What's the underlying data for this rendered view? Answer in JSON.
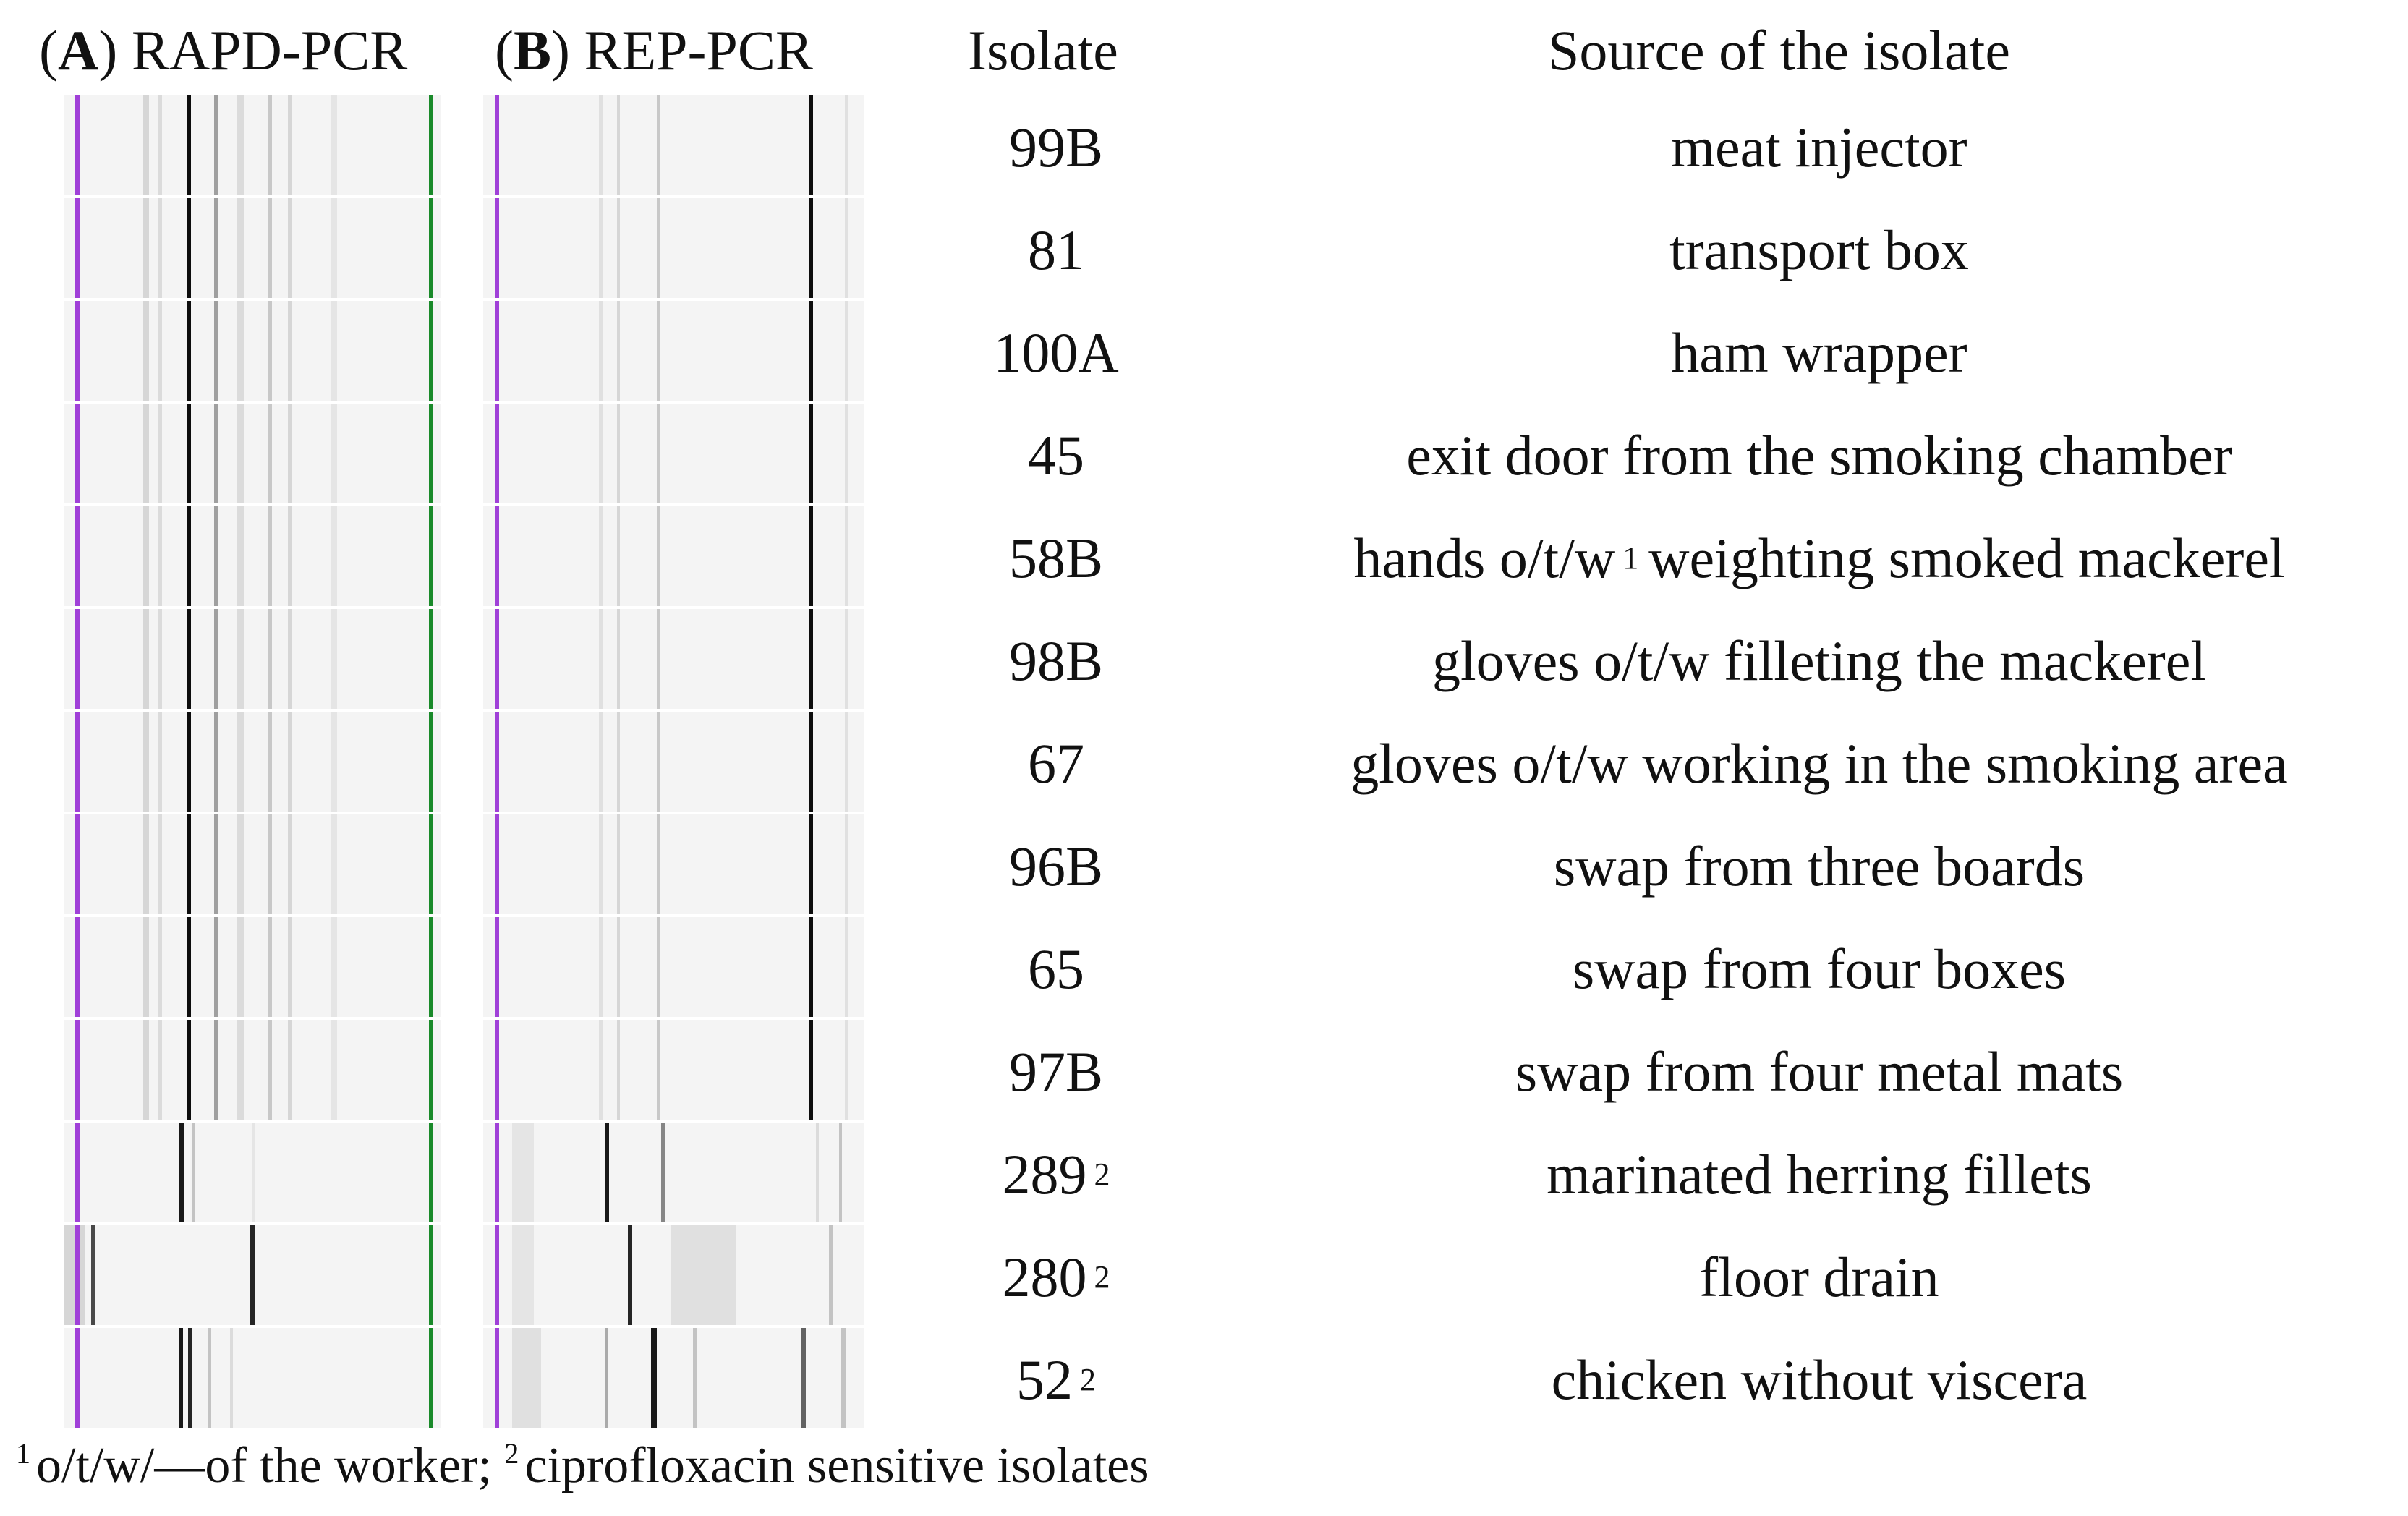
{
  "headers": {
    "panel_a_letter": "A",
    "panel_a_title": "RAPD-PCR",
    "panel_b_letter": "B",
    "panel_b_title": "REP-PCR",
    "isolate": "Isolate",
    "source": "Source of the isolate"
  },
  "rows": [
    {
      "isolate": "99B",
      "sup": "",
      "source": "meat injector"
    },
    {
      "isolate": "81",
      "sup": "",
      "source": "transport box"
    },
    {
      "isolate": "100A",
      "sup": "",
      "source": "ham wrapper"
    },
    {
      "isolate": "45",
      "sup": "",
      "source": "exit door from the smoking chamber"
    },
    {
      "isolate": "58B",
      "sup": "",
      "source": "hands o/t/w",
      "source_sup": "1",
      "source_tail": "weighting smoked mackerel"
    },
    {
      "isolate": "98B",
      "sup": "",
      "source": "gloves o/t/w filleting the mackerel"
    },
    {
      "isolate": "67",
      "sup": "",
      "source": "gloves o/t/w working in the smoking area"
    },
    {
      "isolate": "96B",
      "sup": "",
      "source": "swap from three boards"
    },
    {
      "isolate": "65",
      "sup": "",
      "source": "swap from four boxes"
    },
    {
      "isolate": "97B",
      "sup": "",
      "source": "swap from four metal mats"
    },
    {
      "isolate": "289",
      "sup": "2",
      "source": "marinated herring fillets"
    },
    {
      "isolate": "280",
      "sup": "2",
      "source": "floor drain"
    },
    {
      "isolate": "52",
      "sup": "2",
      "source": "chicken without viscera"
    }
  ],
  "footnote": {
    "sup1": "1",
    "text1": "o/t/w/—of the worker;",
    "sup2": "2",
    "text2": "ciprofloxacin sensitive isolates"
  },
  "colors": {
    "marker_left": "#a040d8",
    "marker_right_a": "#1a8a2a",
    "band_dark": "#111111",
    "lane_background": "#f4f4f4"
  }
}
